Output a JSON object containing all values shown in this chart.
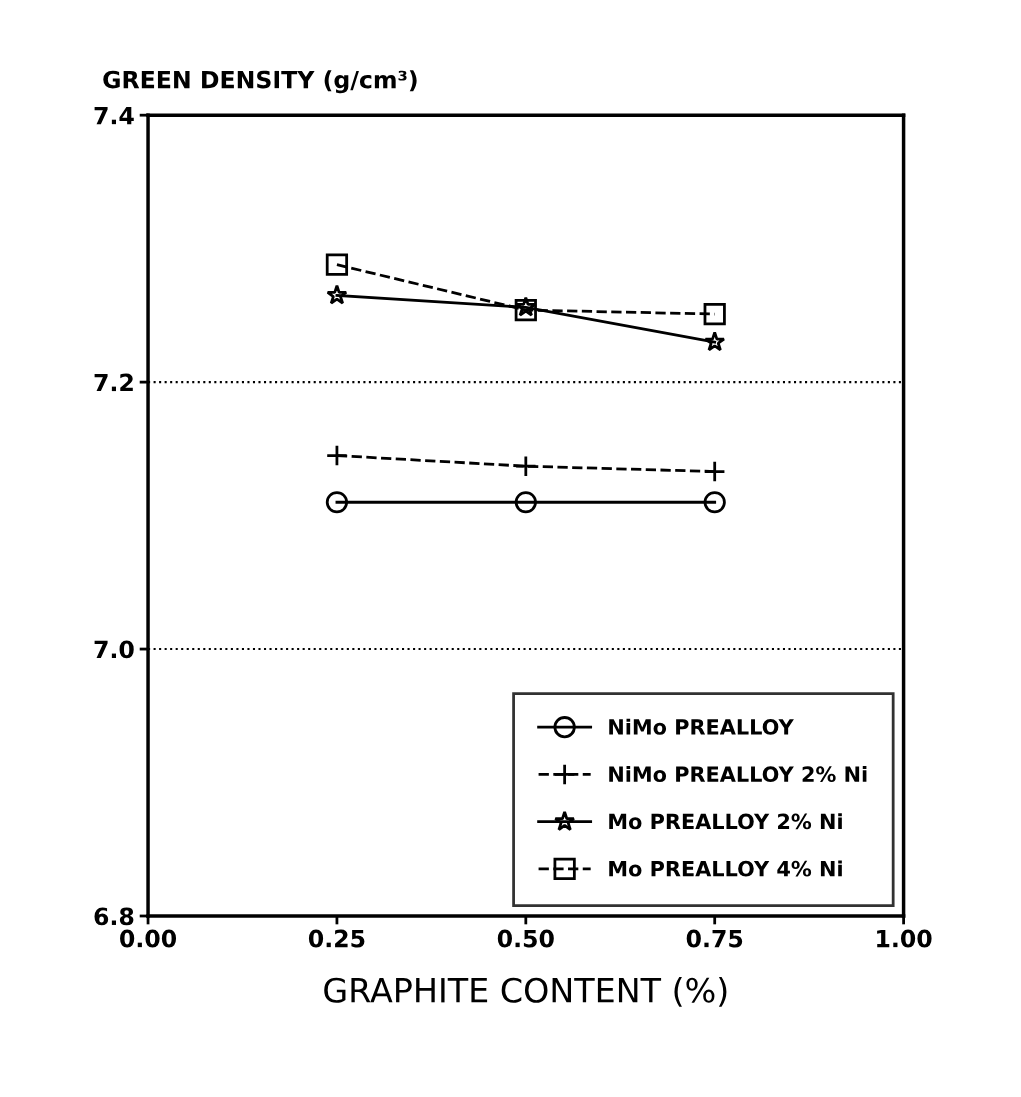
{
  "chart_data": {
    "type": "line",
    "ylabel": "GREEN DENSITY (g/cm³)",
    "xlabel": "GRAPHITE CONTENT (%)",
    "x": [
      0.25,
      0.5,
      0.75
    ],
    "series": [
      {
        "name": "NiMo PREALLOY",
        "color": "#000000",
        "values": [
          7.11,
          7.11,
          7.11
        ],
        "marker": "circle",
        "line_style": "solid"
      },
      {
        "name": "NiMo PREALLOY 2% Ni",
        "color": "#000000",
        "values": [
          7.145,
          7.137,
          7.133
        ],
        "marker": "cross",
        "line_style": "dashed"
      },
      {
        "name": "Mo PREALLOY 2% Ni",
        "color": "#000000",
        "values": [
          7.265,
          7.256,
          7.23
        ],
        "marker": "star",
        "line_style": "solid"
      },
      {
        "name": "Mo PREALLOY 4% Ni",
        "color": "#000000",
        "values": [
          7.288,
          7.254,
          7.251
        ],
        "marker": "square",
        "line_style": "dashed"
      }
    ],
    "xlim": [
      0,
      1
    ],
    "xticks": [
      {
        "value": 0,
        "label": "0.00"
      },
      0.25,
      {
        "value": 0.5,
        "label": "0.50"
      },
      0.75,
      {
        "value": 1,
        "label": "1.00"
      }
    ],
    "ylim": [
      6.8,
      7.4
    ],
    "yticks": [
      6.8,
      {
        "value": 7.0,
        "label": "7.0"
      },
      7.2,
      7.4
    ],
    "ref_lines": [
      {
        "axis": "y",
        "value": 7.2,
        "line_style": "dotted"
      },
      {
        "axis": "y",
        "value": 7.0,
        "line_style": "dotted"
      }
    ],
    "legend": "bottom right"
  }
}
